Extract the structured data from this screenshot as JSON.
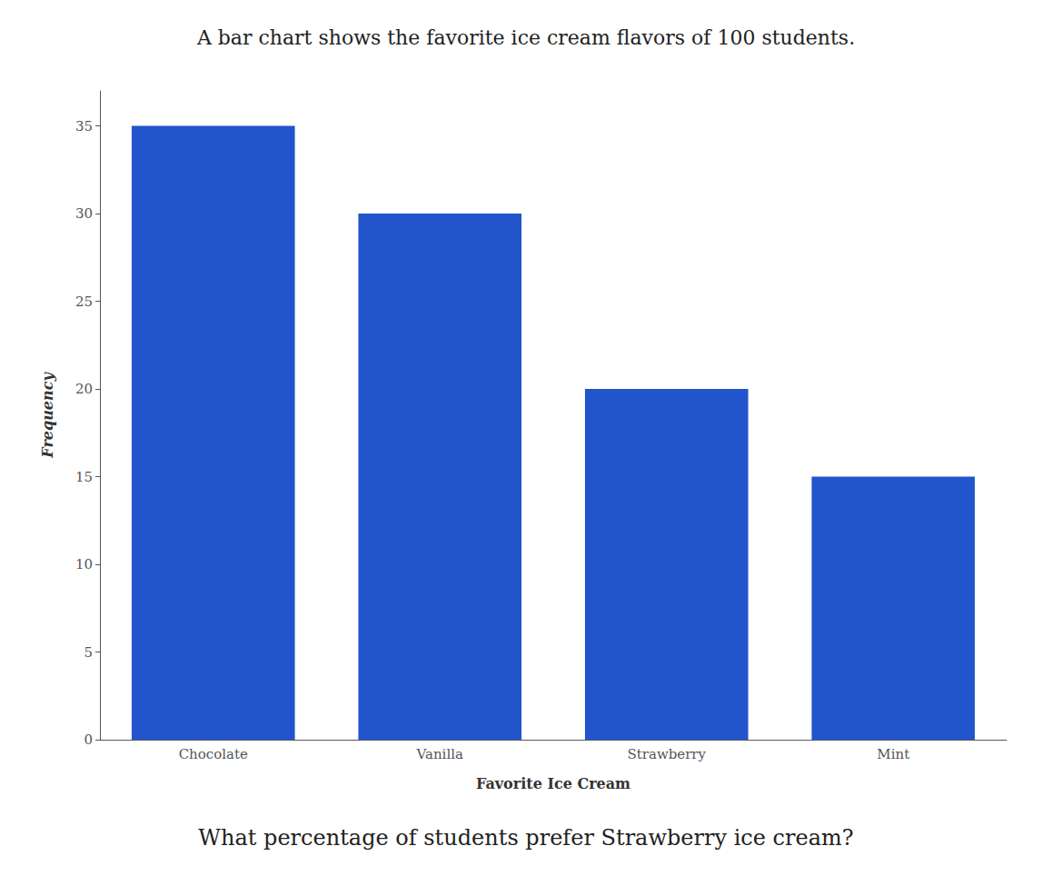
{
  "chart_data": {
    "type": "bar",
    "title": "A bar chart shows the favorite ice cream flavors of 100 students.",
    "categories": [
      "Chocolate",
      "Vanilla",
      "Strawberry",
      "Mint"
    ],
    "values": [
      35,
      30,
      20,
      15
    ],
    "color": "#2255cc",
    "xlabel": "Favorite Ice Cream",
    "ylabel": "Frequency",
    "ylim": [
      0,
      37
    ],
    "yticks": [
      0,
      5,
      10,
      15,
      20,
      25,
      30,
      35
    ],
    "grid": false,
    "annotations": [
      "What percentage of students prefer Strawberry ice cream?"
    ]
  }
}
